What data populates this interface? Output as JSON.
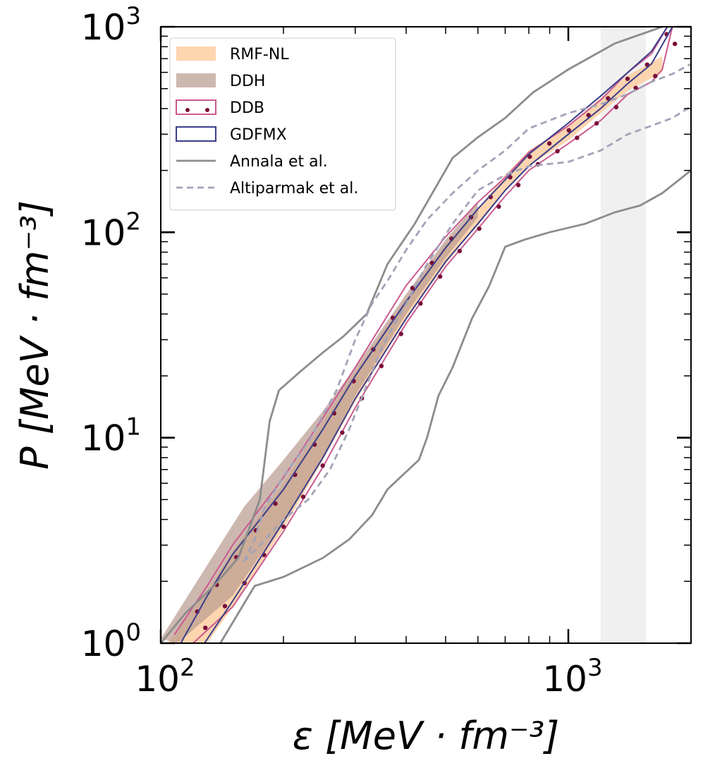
{
  "chart_data": {
    "type": "area",
    "x_scale": "log",
    "y_scale": "log",
    "xlim": [
      100,
      2000
    ],
    "ylim": [
      1,
      1000
    ],
    "xlabel": "ε [MeV · fm⁻³]",
    "ylabel": "P [MeV · fm⁻³]",
    "x_ticks": [
      {
        "base": "10",
        "exp": "2",
        "value": 100
      },
      {
        "base": "10",
        "exp": "3",
        "value": 1000
      }
    ],
    "y_ticks": [
      {
        "base": "10",
        "exp": "0",
        "value": 1
      },
      {
        "base": "10",
        "exp": "1",
        "value": 10
      },
      {
        "base": "10",
        "exp": "2",
        "value": 100
      },
      {
        "base": "10",
        "exp": "3",
        "value": 1000
      }
    ],
    "shaded_region": {
      "x": [
        1200,
        1550
      ],
      "color": "#f0f0f0"
    },
    "legend_position": "upper left",
    "series": [
      {
        "name": "RMF-NL",
        "kind": "band",
        "color": "#fdd0a6",
        "opacity": 0.9,
        "lower": [
          [
            130,
            1.0
          ],
          [
            150,
            1.5
          ],
          [
            200,
            3.6
          ],
          [
            250,
            7.8
          ],
          [
            300,
            15
          ],
          [
            400,
            38
          ],
          [
            500,
            70
          ],
          [
            600,
            110
          ],
          [
            700,
            160
          ],
          [
            800,
            210
          ],
          [
            1000,
            280
          ],
          [
            1200,
            380
          ],
          [
            1400,
            490
          ],
          [
            1700,
            600
          ]
        ],
        "upper": [
          [
            104,
            1.0
          ],
          [
            130,
            1.8
          ],
          [
            150,
            2.8
          ],
          [
            200,
            6
          ],
          [
            250,
            12
          ],
          [
            300,
            21
          ],
          [
            400,
            48
          ],
          [
            500,
            88
          ],
          [
            600,
            130
          ],
          [
            700,
            190
          ],
          [
            800,
            250
          ],
          [
            1000,
            330
          ],
          [
            1200,
            450
          ],
          [
            1400,
            580
          ],
          [
            1700,
            720
          ]
        ]
      },
      {
        "name": "DDH",
        "kind": "band",
        "color": "#b89a8e",
        "opacity": 0.7,
        "lower": [
          [
            110,
            1.0
          ],
          [
            150,
            1.7
          ],
          [
            200,
            3.9
          ],
          [
            250,
            8
          ],
          [
            300,
            16
          ],
          [
            400,
            40
          ],
          [
            500,
            75
          ],
          [
            600,
            118
          ]
        ],
        "upper": [
          [
            100,
            1.05
          ],
          [
            130,
            2.4
          ],
          [
            160,
            4.6
          ],
          [
            200,
            7.8
          ],
          [
            250,
            13.5
          ],
          [
            300,
            22
          ],
          [
            400,
            50
          ],
          [
            500,
            92
          ],
          [
            600,
            140
          ]
        ]
      },
      {
        "name": "DDB",
        "kind": "band",
        "color": "#cc5a8e",
        "marker_color": "#7a0f3a",
        "lower": [
          [
            120,
            1.0
          ],
          [
            150,
            1.5
          ],
          [
            200,
            3.5
          ],
          [
            250,
            7.2
          ],
          [
            300,
            14
          ],
          [
            400,
            36
          ],
          [
            500,
            68
          ],
          [
            600,
            104
          ],
          [
            700,
            150
          ],
          [
            800,
            200
          ],
          [
            1000,
            270
          ],
          [
            1200,
            350
          ],
          [
            1400,
            470
          ],
          [
            1600,
            540
          ],
          [
            1700,
            620
          ],
          [
            1800,
            1000
          ]
        ],
        "upper": [
          [
            108,
            1.1
          ],
          [
            130,
            1.9
          ],
          [
            150,
            3.0
          ],
          [
            200,
            6.4
          ],
          [
            250,
            12.5
          ],
          [
            300,
            22
          ],
          [
            400,
            55
          ],
          [
            500,
            95
          ],
          [
            600,
            140
          ],
          [
            700,
            185
          ],
          [
            800,
            245
          ],
          [
            1000,
            330
          ],
          [
            1200,
            440
          ],
          [
            1400,
            600
          ],
          [
            1600,
            740
          ],
          [
            1750,
            1000
          ]
        ]
      },
      {
        "name": "GDFMX",
        "kind": "band",
        "color": "#3a3d8a",
        "lower": [
          [
            128,
            1.0
          ],
          [
            150,
            1.6
          ],
          [
            200,
            3.9
          ],
          [
            250,
            8
          ],
          [
            300,
            15.5
          ],
          [
            400,
            38
          ],
          [
            500,
            72
          ],
          [
            600,
            110
          ],
          [
            700,
            160
          ],
          [
            800,
            210
          ],
          [
            1000,
            300
          ],
          [
            1200,
            400
          ],
          [
            1400,
            530
          ],
          [
            1600,
            660
          ],
          [
            1800,
            1000
          ]
        ],
        "upper": [
          [
            112,
            1.0
          ],
          [
            130,
            1.7
          ],
          [
            150,
            2.7
          ],
          [
            200,
            5.6
          ],
          [
            250,
            11
          ],
          [
            300,
            20
          ],
          [
            400,
            46
          ],
          [
            500,
            84
          ],
          [
            600,
            130
          ],
          [
            700,
            180
          ],
          [
            800,
            240
          ],
          [
            1000,
            340
          ],
          [
            1200,
            460
          ],
          [
            1400,
            600
          ],
          [
            1600,
            760
          ],
          [
            1750,
            1000
          ]
        ]
      },
      {
        "name": "Annala et al.",
        "kind": "envelope",
        "color": "#8c8c8c",
        "style": "solid",
        "upper": [
          [
            100,
            1.0
          ],
          [
            115,
            1.4
          ],
          [
            135,
            1.9
          ],
          [
            155,
            2.6
          ],
          [
            175,
            5.0
          ],
          [
            185,
            12
          ],
          [
            195,
            17
          ],
          [
            220,
            21
          ],
          [
            250,
            26
          ],
          [
            280,
            31
          ],
          [
            320,
            40
          ],
          [
            360,
            70
          ],
          [
            420,
            110
          ],
          [
            520,
            230
          ],
          [
            600,
            290
          ],
          [
            700,
            360
          ],
          [
            820,
            480
          ],
          [
            1000,
            620
          ],
          [
            1300,
            830
          ],
          [
            1700,
            1000
          ]
        ],
        "lower": [
          [
            140,
            1.0
          ],
          [
            170,
            1.9
          ],
          [
            200,
            2.1
          ],
          [
            220,
            2.3
          ],
          [
            250,
            2.6
          ],
          [
            290,
            3.2
          ],
          [
            330,
            4.2
          ],
          [
            360,
            5.6
          ],
          [
            380,
            6.2
          ],
          [
            430,
            7.8
          ],
          [
            450,
            10
          ],
          [
            480,
            16
          ],
          [
            520,
            22
          ],
          [
            580,
            38
          ],
          [
            640,
            55
          ],
          [
            700,
            85
          ],
          [
            780,
            92
          ],
          [
            900,
            100
          ],
          [
            1100,
            110
          ],
          [
            1300,
            125
          ],
          [
            1500,
            135
          ],
          [
            1700,
            155
          ],
          [
            2000,
            200
          ]
        ]
      },
      {
        "name": "Altiparmak et al.",
        "kind": "envelope",
        "color": "#a3a3b8",
        "style": "dashed",
        "upper": [
          [
            160,
            2.5
          ],
          [
            170,
            3.2
          ],
          [
            180,
            4.6
          ],
          [
            200,
            6.5
          ],
          [
            230,
            9.5
          ],
          [
            270,
            17
          ],
          [
            300,
            30
          ],
          [
            330,
            45
          ],
          [
            360,
            58
          ],
          [
            400,
            82
          ],
          [
            450,
            115
          ],
          [
            520,
            155
          ],
          [
            600,
            200
          ],
          [
            700,
            250
          ],
          [
            800,
            320
          ],
          [
            1000,
            380
          ],
          [
            1200,
            420
          ],
          [
            1400,
            470
          ],
          [
            1600,
            540
          ],
          [
            1800,
            590
          ],
          [
            2000,
            660
          ]
        ],
        "lower": [
          [
            160,
            2.5
          ],
          [
            175,
            3.0
          ],
          [
            200,
            4.0
          ],
          [
            230,
            5.0
          ],
          [
            260,
            7.0
          ],
          [
            290,
            11
          ],
          [
            320,
            18
          ],
          [
            350,
            28
          ],
          [
            400,
            45
          ],
          [
            450,
            70
          ],
          [
            520,
            110
          ],
          [
            600,
            160
          ],
          [
            700,
            190
          ],
          [
            800,
            210
          ],
          [
            1000,
            220
          ],
          [
            1200,
            250
          ],
          [
            1400,
            300
          ],
          [
            1600,
            330
          ],
          [
            1800,
            360
          ],
          [
            2000,
            410
          ]
        ]
      }
    ]
  }
}
